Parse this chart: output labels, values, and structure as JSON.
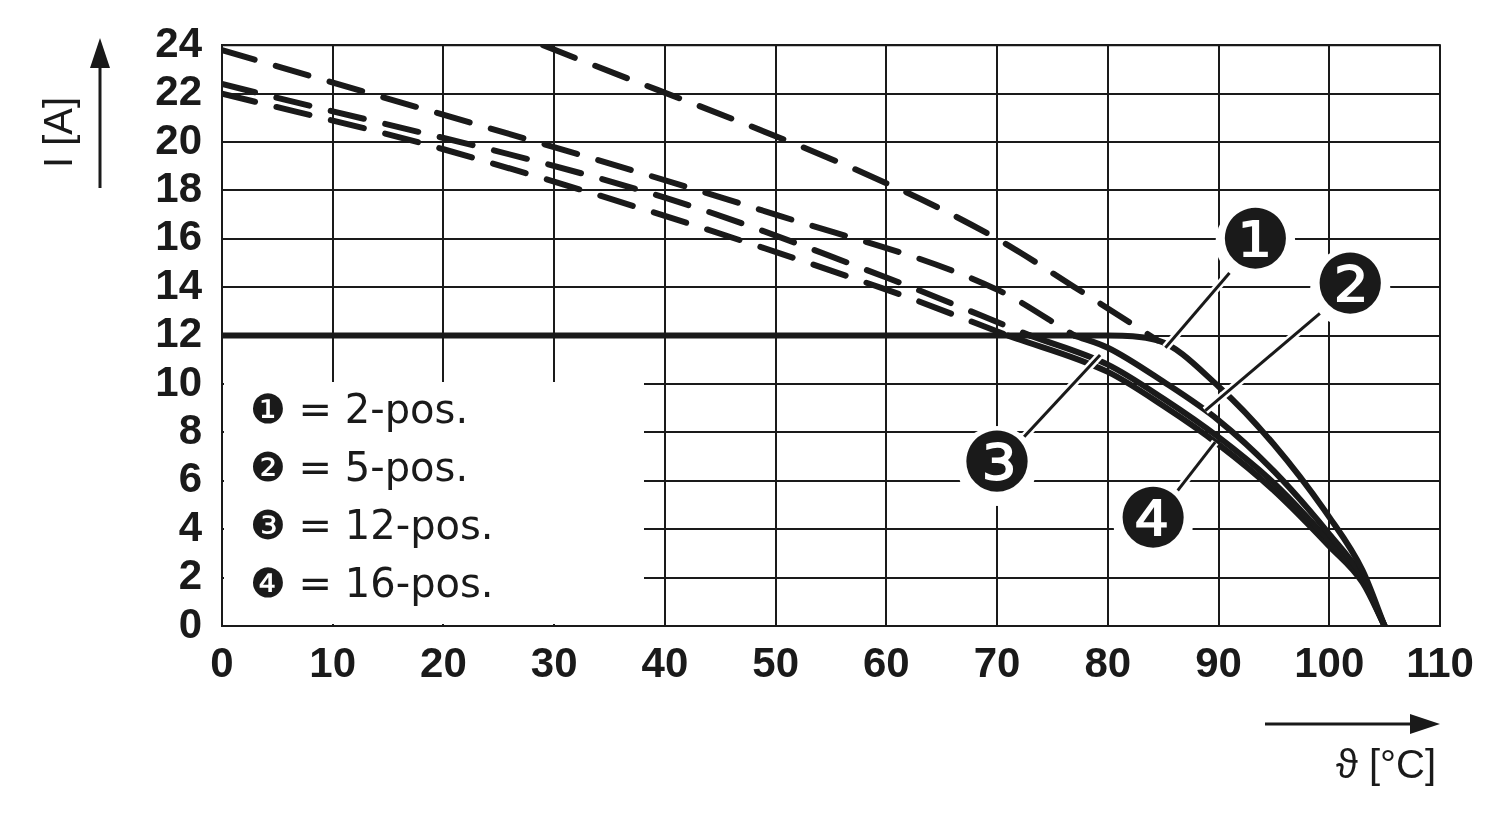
{
  "chart_data": {
    "type": "line",
    "xlabel": "ϑ [°C]",
    "ylabel": "I [A]",
    "xlim": [
      0,
      110
    ],
    "xticks": [
      0,
      10,
      20,
      30,
      40,
      50,
      60,
      70,
      80,
      90,
      100,
      110
    ],
    "ylim": [
      0,
      24
    ],
    "yticks": [
      0,
      2,
      4,
      6,
      8,
      10,
      12,
      14,
      16,
      18,
      20,
      22,
      24
    ],
    "grid": true,
    "marker": "none",
    "series": [
      {
        "color": "#1a1a1a",
        "line_style": "solid",
        "x": [
          0,
          20,
          40,
          60,
          80,
          84.5,
          90,
          95,
          100,
          103,
          105
        ],
        "values": [
          12,
          12,
          12,
          12,
          12,
          11.8,
          9.9,
          7.5,
          4.5,
          2.3,
          0
        ]
      },
      {
        "color": "#1a1a1a",
        "line_style": "solid",
        "x": [
          77,
          80,
          85,
          90,
          95,
          100,
          103,
          105
        ],
        "values": [
          12,
          11.5,
          10.1,
          8.5,
          6.4,
          3.8,
          2,
          0
        ]
      },
      {
        "color": "#1a1a1a",
        "line_style": "solid",
        "x": [
          73,
          80,
          85,
          90,
          95,
          100,
          103,
          105
        ],
        "values": [
          12,
          10.8,
          9.4,
          7.8,
          5.9,
          3.5,
          1.9,
          0
        ]
      },
      {
        "color": "#1a1a1a",
        "line_style": "solid",
        "x": [
          71,
          80,
          85,
          90,
          95,
          100,
          103,
          105
        ],
        "values": [
          12,
          10.5,
          9.1,
          7.5,
          5.6,
          3.3,
          1.8,
          0
        ]
      },
      {
        "color": "#1a1a1a",
        "line_style": "dashed",
        "x": [
          29,
          60,
          70,
          77,
          84.5
        ],
        "values": [
          24,
          18.3,
          16,
          14,
          11.8
        ]
      },
      {
        "color": "#1a1a1a",
        "line_style": "dashed",
        "x": [
          0,
          50,
          70,
          77
        ],
        "values": [
          23.8,
          17,
          13.9,
          12
        ]
      },
      {
        "color": "#1a1a1a",
        "line_style": "dashed",
        "x": [
          0,
          40,
          60,
          73
        ],
        "values": [
          22.4,
          17.7,
          14.4,
          12
        ]
      },
      {
        "color": "#1a1a1a",
        "line_style": "dashed",
        "x": [
          0,
          20,
          60,
          71
        ],
        "values": [
          22,
          19.7,
          13.9,
          12
        ]
      }
    ],
    "annotations": [
      "❶ = 2-pos.",
      "❷ = 5-pos.",
      "❸ = 12-pos.",
      "❹ = 16-pos.",
      {
        "text": "❶",
        "x": 85.2,
        "y": 11.5
      },
      {
        "text": "❷",
        "x": 88.8,
        "y": 8.9
      },
      {
        "text": "❸",
        "x": 79.3,
        "y": 11.2
      },
      {
        "text": "❹",
        "x": 89.7,
        "y": 7.6
      }
    ]
  }
}
